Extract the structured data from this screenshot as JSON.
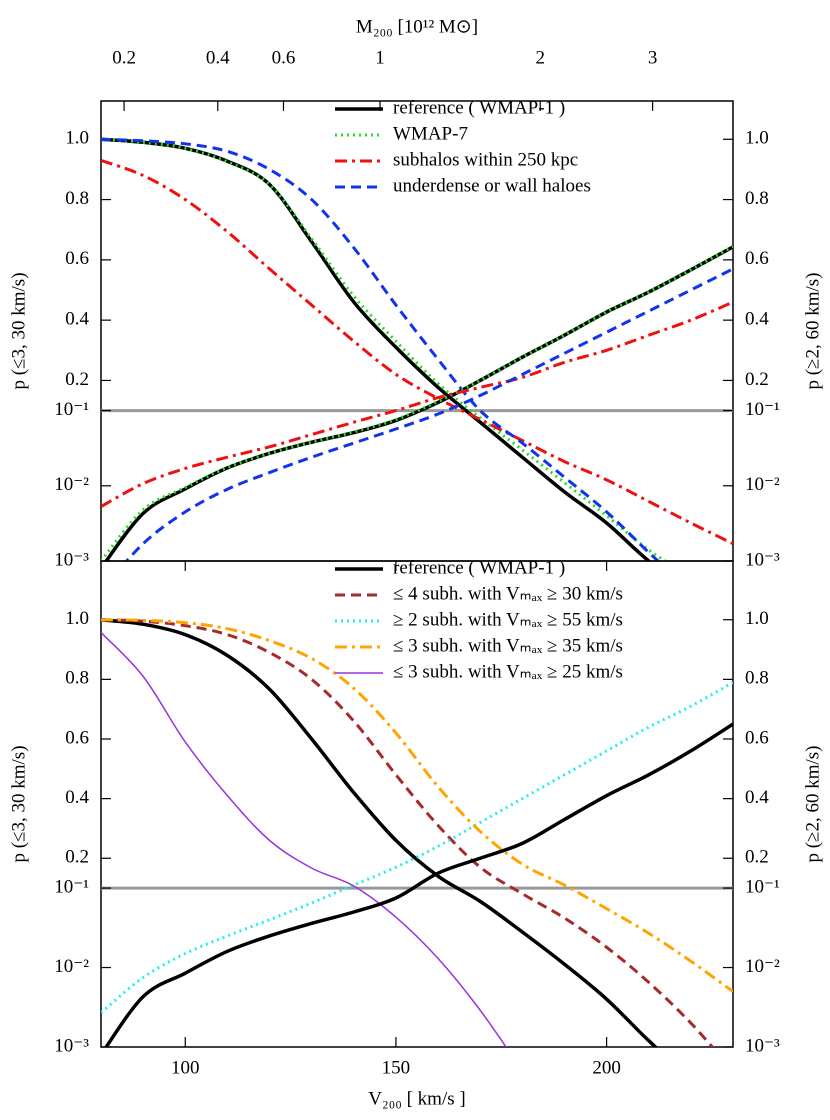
{
  "chart_data": [
    {
      "type": "line",
      "x2label": "M₂₀₀  [10¹² M⊙]",
      "x2scale": "cube",
      "x2lim": [
        0.164,
        3.89
      ],
      "x2ticks": [
        0.2,
        0.4,
        0.6,
        1,
        2,
        3
      ],
      "xlim": [
        80,
        230
      ],
      "yscale": "log-linear",
      "ybreak": 0.1,
      "ylim": [
        0.001,
        1.127
      ],
      "yticks": [
        {
          "value": 0.001,
          "label": "10⁻³"
        },
        {
          "value": 0.01,
          "label": "10⁻²"
        },
        {
          "value": 0.1,
          "label": "10⁻¹"
        },
        0.2,
        0.4,
        0.6,
        0.8,
        {
          "value": 1,
          "label": "1.0"
        }
      ],
      "y2lim": [
        0.001,
        1.127
      ],
      "y2ticks": [
        {
          "value": 0.001,
          "label": "10⁻³"
        },
        {
          "value": 0.01,
          "label": "10⁻²"
        },
        {
          "value": 0.1,
          "label": "10⁻¹"
        },
        0.2,
        0.4,
        0.6,
        0.8,
        {
          "value": 1,
          "label": "1.0"
        }
      ],
      "ylabel": "p (≤3, 30 km/s)",
      "y2label": "p (≥2, 60 km/s)",
      "hline": {
        "value": 0.1,
        "color": "#999999"
      },
      "legend": "upper right",
      "x": [
        80,
        90,
        100,
        110,
        120,
        130,
        140,
        150,
        160,
        170,
        180,
        190,
        200,
        210,
        220,
        230
      ],
      "series": [
        {
          "name": "reference  ( WMAP-1 )",
          "color": "#000000",
          "style": "solid",
          "linewidth": 3.5,
          "values": [
            1.0,
            0.99,
            0.97,
            0.927,
            0.85,
            0.66,
            0.46,
            0.31,
            0.177,
            0.07,
            0.024,
            0.0083,
            0.0032,
            0.001,
            0.0004,
            0.00015
          ]
        },
        {
          "name": "WMAP-7",
          "color": "#22dd22",
          "style": "dotted",
          "linewidth": 3,
          "values": [
            1.0,
            0.99,
            0.97,
            0.925,
            0.85,
            0.67,
            0.48,
            0.33,
            0.19,
            0.08,
            0.03,
            0.011,
            0.004,
            0.0014,
            0.0006,
            0.0002
          ]
        },
        {
          "name": "subhalos within 250 kpc",
          "color": "#ee1111",
          "style": "dashdot",
          "linewidth": 3,
          "values": [
            0.93,
            0.88,
            0.8,
            0.693,
            0.57,
            0.45,
            0.33,
            0.22,
            0.14,
            0.076,
            0.04,
            0.021,
            0.012,
            0.0062,
            0.0032,
            0.0017
          ]
        },
        {
          "name": "underdense or wall haloes",
          "color": "#1133ee",
          "style": "dashed",
          "linewidth": 3,
          "values": [
            1.0,
            0.995,
            0.985,
            0.96,
            0.9,
            0.8,
            0.64,
            0.45,
            0.27,
            0.1,
            0.037,
            0.013,
            0.0045,
            0.0013,
            0.0004,
            0.00013
          ]
        },
        {
          "color": "#000000",
          "style": "solid",
          "linewidth": 3.5,
          "axis": "y2",
          "values": [
            0.0008,
            0.0043,
            0.0091,
            0.0173,
            0.027,
            0.038,
            0.051,
            0.074,
            0.127,
            0.2,
            0.277,
            0.35,
            0.427,
            0.493,
            0.567,
            0.643
          ]
        },
        {
          "color": "#22dd22",
          "style": "dotted",
          "linewidth": 3,
          "axis": "y2",
          "values": [
            0.001,
            0.0048,
            0.0095,
            0.0175,
            0.027,
            0.038,
            0.052,
            0.076,
            0.13,
            0.2,
            0.277,
            0.35,
            0.427,
            0.493,
            0.567,
            0.645
          ]
        },
        {
          "color": "#ee1111",
          "style": "dashdot",
          "linewidth": 3,
          "axis": "y2",
          "values": [
            0.0053,
            0.0107,
            0.017,
            0.024,
            0.033,
            0.048,
            0.07,
            0.1,
            0.143,
            0.177,
            0.21,
            0.26,
            0.3,
            0.35,
            0.4,
            0.46
          ]
        },
        {
          "color": "#1133ee",
          "style": "dashed",
          "linewidth": 3,
          "axis": "y2",
          "values": [
            0.0004,
            0.0017,
            0.0045,
            0.009,
            0.015,
            0.024,
            0.037,
            0.057,
            0.09,
            0.15,
            0.22,
            0.29,
            0.36,
            0.43,
            0.5,
            0.57
          ]
        }
      ]
    },
    {
      "type": "line",
      "xlabel": "V₂₀₀  [ km/s ]",
      "xlim": [
        80,
        230
      ],
      "xticks": [
        100,
        150,
        200
      ],
      "yscale": "log-linear",
      "ybreak": 0.1,
      "ylim": [
        0.001,
        1.197
      ],
      "yticks": [
        {
          "value": 0.001,
          "label": "10⁻³"
        },
        {
          "value": 0.01,
          "label": "10⁻²"
        },
        {
          "value": 0.1,
          "label": "10⁻¹"
        },
        0.2,
        0.4,
        0.6,
        0.8,
        {
          "value": 1,
          "label": "1.0"
        }
      ],
      "y2lim": [
        0.001,
        1.197
      ],
      "y2ticks": [
        {
          "value": 0.001,
          "label": "10⁻³"
        },
        {
          "value": 0.01,
          "label": "10⁻²"
        },
        {
          "value": 0.1,
          "label": "10⁻¹"
        },
        0.2,
        0.4,
        0.6,
        0.8,
        {
          "value": 1,
          "label": "1.0"
        }
      ],
      "ylabel": "p (≤3, 30 km/s)",
      "y2label": "p (≥2, 60 km/s)",
      "hline": {
        "value": 0.1,
        "color": "#999999"
      },
      "legend": "upper right",
      "x": [
        80,
        90,
        100,
        110,
        120,
        130,
        140,
        150,
        160,
        170,
        180,
        190,
        200,
        210,
        220,
        230
      ],
      "series": [
        {
          "name": "reference  ( WMAP-1 )",
          "color": "#000000",
          "style": "solid",
          "linewidth": 3.5,
          "values": [
            1.0,
            0.985,
            0.95,
            0.88,
            0.767,
            0.6,
            0.42,
            0.26,
            0.14,
            0.068,
            0.028,
            0.011,
            0.004,
            0.0012,
            0.0004,
            0.00015
          ]
        },
        {
          "name": "≤ 4 subh. with Vₘₐₓ ≥ 30 km/s",
          "color": "#a52a2a",
          "style": "dashed",
          "linewidth": 3,
          "values": [
            1.0,
            0.995,
            0.98,
            0.95,
            0.89,
            0.8,
            0.66,
            0.48,
            0.31,
            0.17,
            0.085,
            0.042,
            0.018,
            0.0065,
            0.002,
            0.0005
          ]
        },
        {
          "name": "≥ 2 subh. with Vₘₐₓ ≥ 55 km/s",
          "color": "#22eeee",
          "style": "dotted",
          "linewidth": 3,
          "axis": "y2",
          "values": [
            0.0027,
            0.0075,
            0.015,
            0.025,
            0.04,
            0.065,
            0.11,
            0.17,
            0.24,
            0.32,
            0.4,
            0.48,
            0.56,
            0.64,
            0.71,
            0.79
          ]
        },
        {
          "name": "≤ 3 subh. with Vₘₐₓ ≥ 35 km/s",
          "color": "#ffa500",
          "style": "dashdot",
          "linewidth": 3,
          "values": [
            1.0,
            0.998,
            0.99,
            0.97,
            0.93,
            0.87,
            0.77,
            0.62,
            0.44,
            0.29,
            0.18,
            0.11,
            0.055,
            0.027,
            0.012,
            0.005
          ]
        },
        {
          "name": "≤ 3 subh. with Vₘₐₓ ≥ 25 km/s",
          "color": "#9933dd",
          "style": "solid",
          "linewidth": 1.5,
          "values": [
            0.957,
            0.81,
            0.59,
            0.41,
            0.26,
            0.167,
            0.107,
            0.043,
            0.013,
            0.0029,
            0.0005,
            null,
            null,
            null,
            null,
            null
          ]
        },
        {
          "color": "#000000",
          "style": "solid",
          "linewidth": 3.5,
          "axis": "y2",
          "values": [
            0.0008,
            0.0043,
            0.0085,
            0.016,
            0.025,
            0.036,
            0.05,
            0.075,
            0.15,
            0.2,
            0.25,
            0.33,
            0.41,
            0.48,
            0.56,
            0.65
          ]
        }
      ]
    }
  ]
}
